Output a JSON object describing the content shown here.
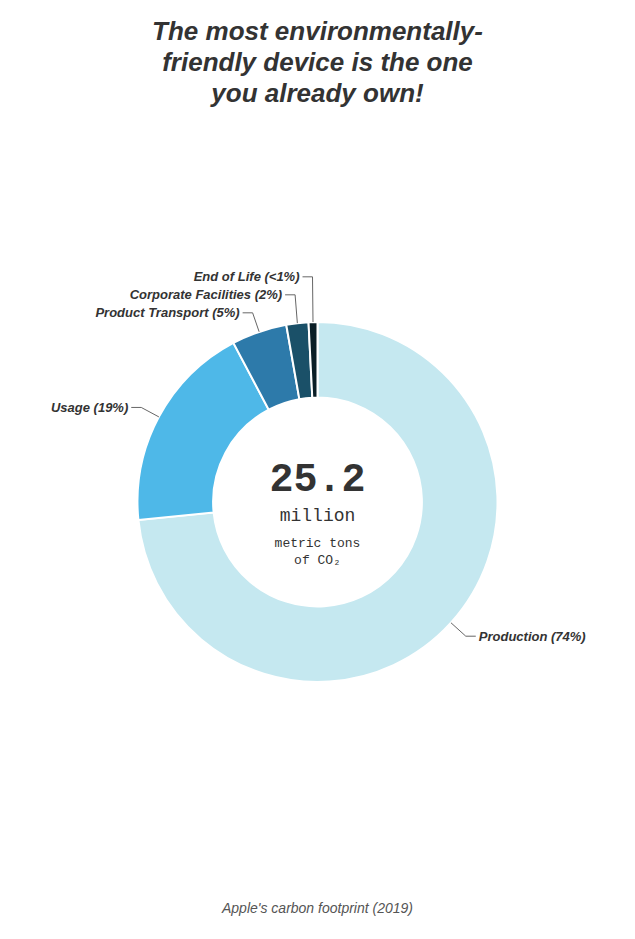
{
  "chart_data": {
    "type": "pie",
    "title": "The most environmentally-\nfriendly device is the one\nyou already own!",
    "subtitle": "Apple's carbon footprint (2019)",
    "annotations": [
      "25.2",
      "million",
      "metric tons\nof CO₂"
    ],
    "categories": [
      "Production (74%)",
      "Usage (19%)",
      "Product Transport (5%)",
      "Corporate Facilities (2%)",
      "End of Life (<1%)"
    ],
    "values": [
      74,
      19,
      5,
      2,
      0.8
    ],
    "colors": [
      "#c5e8f0",
      "#4eb8e8",
      "#2d7aaa",
      "#1a5068",
      "#0a1e26"
    ]
  }
}
